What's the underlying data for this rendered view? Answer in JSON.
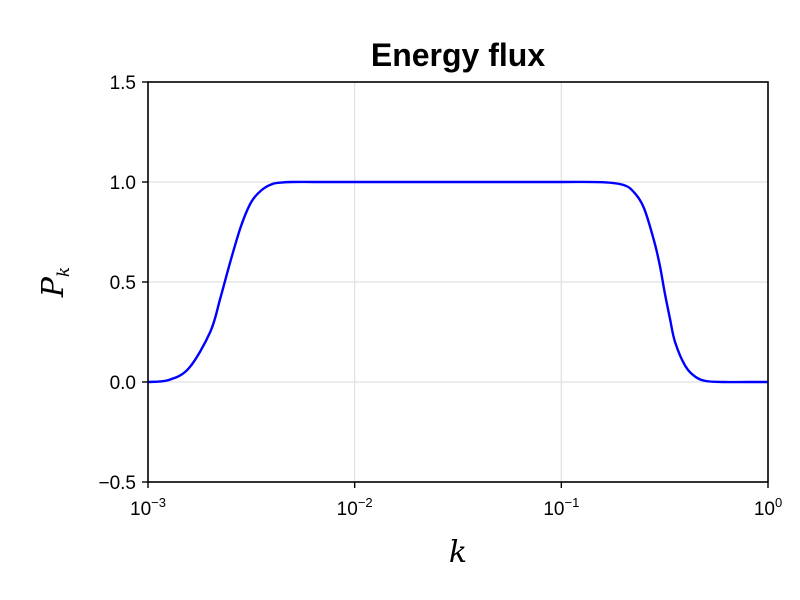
{
  "chart_data": {
    "type": "line",
    "title": "Energy flux",
    "xlabel": "k",
    "ylabel": {
      "base": "P",
      "sub": "k"
    },
    "xscale": "log",
    "xlim": [
      0.001,
      1
    ],
    "ylim": [
      -0.5,
      1.5
    ],
    "grid": true,
    "xticks": [
      {
        "value": 0.001,
        "base": "10",
        "exp": "−3"
      },
      {
        "value": 0.01,
        "base": "10",
        "exp": "−2"
      },
      {
        "value": 0.1,
        "base": "10",
        "exp": "−1"
      },
      {
        "value": 1,
        "base": "10",
        "exp": "0"
      }
    ],
    "yticks": [
      {
        "value": -0.5,
        "label": "−0.5"
      },
      {
        "value": 0,
        "label": "0.0"
      },
      {
        "value": 0.5,
        "label": "0.5"
      },
      {
        "value": 1,
        "label": "1.0"
      },
      {
        "value": 1.5,
        "label": "1.5"
      }
    ],
    "line_color": "#0000ff",
    "series": [
      {
        "x": [
          0.001,
          0.00126,
          0.00158,
          0.002,
          0.00224,
          0.0025,
          0.00282,
          0.00316,
          0.00355,
          0.004,
          0.0045,
          0.005,
          0.0063,
          0.0079,
          0.01,
          0.02,
          0.05,
          0.1,
          0.158,
          0.2,
          0.224,
          0.251,
          0.282,
          0.3,
          0.316,
          0.335,
          0.355,
          0.398,
          0.447,
          0.5,
          0.6,
          0.8,
          1.0
        ],
        "y": [
          0.0,
          0.01,
          0.07,
          0.25,
          0.42,
          0.6,
          0.78,
          0.9,
          0.96,
          0.99,
          0.998,
          1.0,
          1.0,
          1.0,
          1.0,
          1.0,
          1.0,
          1.0,
          0.999,
          0.985,
          0.95,
          0.87,
          0.7,
          0.58,
          0.45,
          0.32,
          0.2,
          0.08,
          0.025,
          0.005,
          0.0,
          0.0,
          0.0
        ]
      }
    ]
  }
}
